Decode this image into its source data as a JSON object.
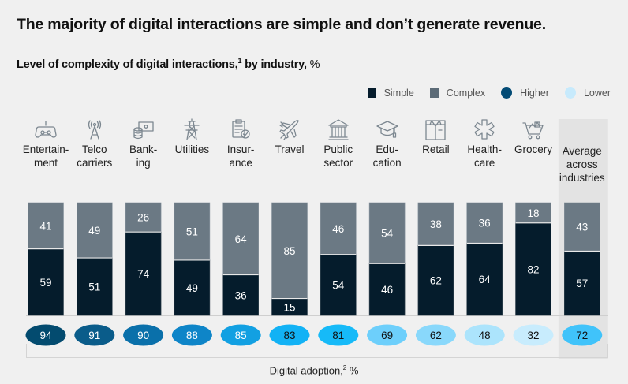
{
  "header": {
    "title": "The majority of digital interactions are simple and don’t generate revenue.",
    "subtitle_main": "Level of complexity of digital interactions,",
    "subtitle_footnote": "1",
    "subtitle_tail": " by industry,",
    "subtitle_unit": " %"
  },
  "legend": [
    {
      "label": "Simple",
      "shape": "square",
      "color": "#051c2c"
    },
    {
      "label": "Complex",
      "shape": "square",
      "color": "#5c6b77"
    },
    {
      "label": "Higher",
      "shape": "circle",
      "color": "#034b75"
    },
    {
      "label": "Lower",
      "shape": "circle",
      "color": "#c7eafc"
    }
  ],
  "x_axis": {
    "label": "Digital adoption,",
    "footnote": "2",
    "unit": " %"
  },
  "colors": {
    "simple": "#051c2c",
    "complex": "#6b7984",
    "highlight_band": "#e3e3e3",
    "adoption_scale": [
      "#034b6f",
      "#0a5c8a",
      "#0a70aa",
      "#0e85c8",
      "#12a0e2",
      "#12b2f5",
      "#16baf8",
      "#6dcffb",
      "#89d8fb",
      "#ace4fc",
      "#c8ecfd",
      "#40c3fa"
    ]
  },
  "chart_data": {
    "type": "bar",
    "stacked": true,
    "title": "Level of complexity of digital interactions, by industry, %",
    "xlabel": "Digital adoption, %",
    "ylabel": "",
    "ylim": [
      0,
      100
    ],
    "categories": [
      {
        "name": "Entertainment",
        "label_lines": [
          "Entertain-",
          "ment"
        ],
        "icon": "game-controller-icon"
      },
      {
        "name": "Telco carriers",
        "label_lines": [
          "Telco",
          "carriers"
        ],
        "icon": "radio-tower-icon"
      },
      {
        "name": "Banking",
        "label_lines": [
          "Bank-",
          "ing"
        ],
        "icon": "money-coins-icon"
      },
      {
        "name": "Utilities",
        "label_lines": [
          "Utilities"
        ],
        "icon": "power-pylon-icon"
      },
      {
        "name": "Insurance",
        "label_lines": [
          "Insur-",
          "ance"
        ],
        "icon": "clipboard-check-icon"
      },
      {
        "name": "Travel",
        "label_lines": [
          "Travel"
        ],
        "icon": "airplane-icon"
      },
      {
        "name": "Public sector",
        "label_lines": [
          "Public",
          "sector"
        ],
        "icon": "government-building-icon"
      },
      {
        "name": "Education",
        "label_lines": [
          "Edu-",
          "cation"
        ],
        "icon": "graduation-cap-icon"
      },
      {
        "name": "Retail",
        "label_lines": [
          "Retail"
        ],
        "icon": "shirt-box-icon"
      },
      {
        "name": "Healthcare",
        "label_lines": [
          "Health-",
          "care"
        ],
        "icon": "medical-star-icon"
      },
      {
        "name": "Grocery",
        "label_lines": [
          "Grocery"
        ],
        "icon": "shopping-cart-icon"
      },
      {
        "name": "Average across industries",
        "label_lines": [
          "Average",
          "across",
          "industries"
        ],
        "icon": null,
        "highlight": true
      }
    ],
    "series": [
      {
        "name": "Simple",
        "values": [
          59,
          51,
          74,
          49,
          36,
          15,
          54,
          46,
          62,
          64,
          82,
          57
        ]
      },
      {
        "name": "Complex",
        "values": [
          41,
          49,
          26,
          51,
          64,
          85,
          46,
          54,
          38,
          36,
          18,
          43
        ]
      }
    ],
    "digital_adoption": {
      "name": "Digital adoption, %",
      "values": [
        94,
        91,
        90,
        88,
        85,
        83,
        81,
        69,
        62,
        48,
        32,
        72
      ],
      "scale_legend": [
        "Higher",
        "Lower"
      ]
    }
  }
}
